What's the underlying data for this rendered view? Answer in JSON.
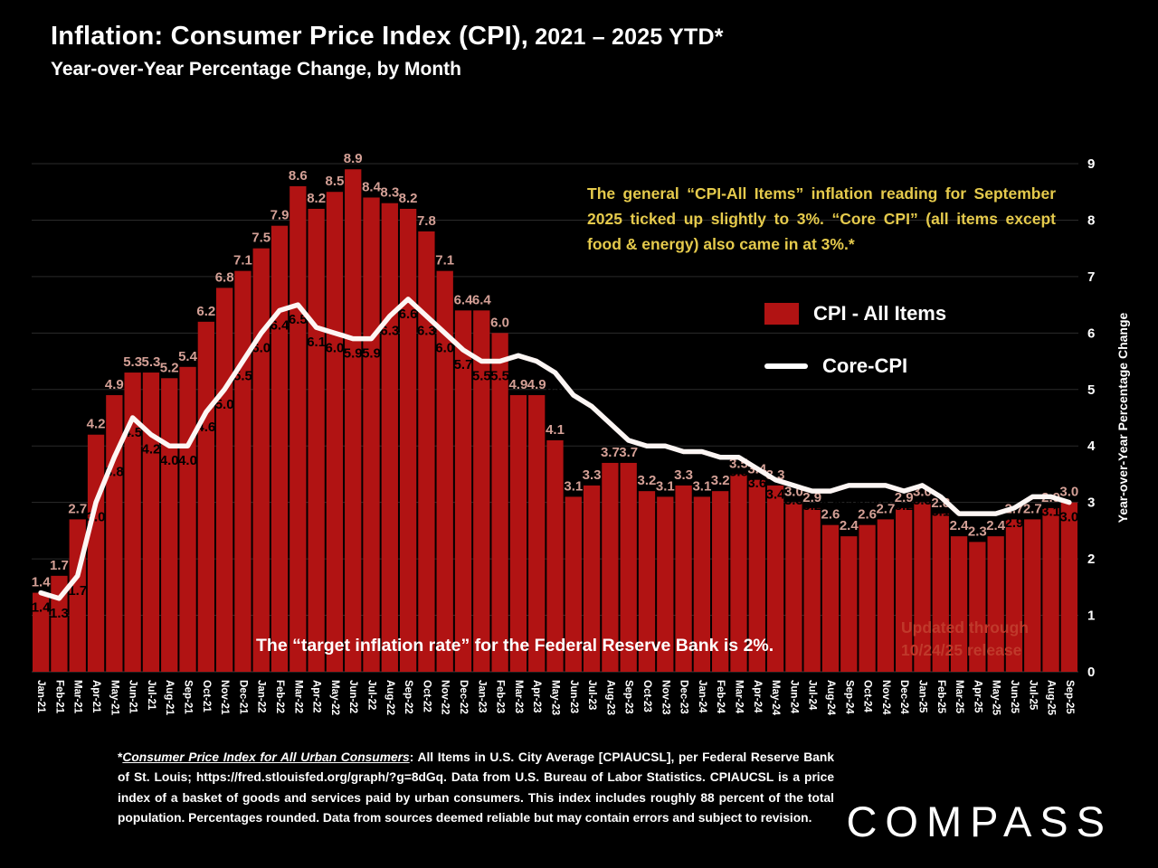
{
  "header": {
    "title_main": "Inflation: Consumer Price Index (CPI),",
    "title_suffix": " 2021 – 2025 YTD*",
    "subtitle": "Year-over-Year Percentage Change, by Month"
  },
  "annotation": {
    "text": "The general “CPI-All Items” inflation reading for September 2025 ticked up slightly to 3%. “Core CPI” (all items except food & energy) also came in at 3%.*"
  },
  "legend": {
    "items": [
      {
        "label": "CPI - All Items",
        "type": "bar",
        "color": "#B11313"
      },
      {
        "label": "Core-CPI",
        "type": "line",
        "color": "#FFFFFF"
      }
    ]
  },
  "notes": {
    "target": "The “target inflation rate” for the Federal Reserve Bank is 2%.",
    "updated_line1": "Updated through",
    "updated_line2": "10/24/25 release"
  },
  "footnote": {
    "prefix": "*",
    "underlined": "Consumer Price Index for All Urban Consumers",
    "rest": ": All Items in U.S. City Average [CPIAUCSL], per Federal Reserve Bank of St. Louis; https://fred.stlouisfed.org/graph/?g=8dGq. Data from U.S. Bureau of Labor Statistics. CPIAUCSL is a price index of a basket of goods and services paid by urban consumers. This index includes roughly 88 percent of the total population. Percentages rounded. Data from sources deemed reliable but may contain errors and subject to revision."
  },
  "brand": {
    "name": "COMPASS"
  },
  "chart_data": {
    "type": "bar",
    "title": "Inflation: Consumer Price Index (CPI), 2021 – 2025 YTD",
    "xlabel": "",
    "ylabel": "Year-over-Year Percentage Change",
    "ylim": [
      0,
      9
    ],
    "yticks": [
      0,
      1,
      2,
      3,
      4,
      5,
      6,
      7,
      8,
      9
    ],
    "grid": true,
    "legend_position": "right-middle",
    "categories": [
      "Jan-21",
      "Feb-21",
      "Mar-21",
      "Apr-21",
      "May-21",
      "Jun-21",
      "Jul-21",
      "Aug-21",
      "Sep-21",
      "Oct-21",
      "Nov-21",
      "Dec-21",
      "Jan-22",
      "Feb-22",
      "Mar-22",
      "Apr-22",
      "May-22",
      "Jun-22",
      "Jul-22",
      "Aug-22",
      "Sep-22",
      "Oct-22",
      "Nov-22",
      "Dec-22",
      "Jan-23",
      "Feb-23",
      "Mar-23",
      "Apr-23",
      "May-23",
      "Jun-23",
      "Jul-23",
      "Aug-23",
      "Sep-23",
      "Oct-23",
      "Nov-23",
      "Dec-23",
      "Jan-24",
      "Feb-24",
      "Mar-24",
      "Apr-24",
      "May-24",
      "Jun-24",
      "Jul-24",
      "Aug-24",
      "Sep-24",
      "Oct-24",
      "Nov-24",
      "Dec-24",
      "Jan-25",
      "Feb-25",
      "Mar-25",
      "Apr-25",
      "May-25",
      "Jun-25",
      "Jul-25",
      "Aug-25",
      "Sep-25"
    ],
    "series": [
      {
        "name": "CPI - All Items",
        "type": "bar",
        "color": "#B11313",
        "values": [
          1.4,
          1.7,
          2.7,
          4.2,
          4.9,
          5.3,
          5.3,
          5.2,
          5.4,
          6.2,
          6.8,
          7.1,
          7.5,
          7.9,
          8.6,
          8.2,
          8.5,
          8.9,
          8.4,
          8.3,
          8.2,
          7.8,
          7.1,
          6.4,
          6.4,
          6.0,
          4.9,
          4.9,
          4.1,
          3.1,
          3.3,
          3.7,
          3.7,
          3.2,
          3.1,
          3.3,
          3.1,
          3.2,
          3.5,
          3.4,
          3.3,
          3.0,
          2.9,
          2.6,
          2.4,
          2.6,
          2.7,
          2.9,
          3.0,
          2.8,
          2.4,
          2.3,
          2.4,
          2.7,
          2.7,
          2.9,
          3.0
        ]
      },
      {
        "name": "Core-CPI",
        "type": "line",
        "color": "#FDF6F4",
        "values": [
          1.4,
          1.3,
          1.7,
          3.0,
          3.8,
          4.5,
          4.2,
          4.0,
          4.0,
          4.6,
          5.0,
          5.5,
          6.0,
          6.4,
          6.5,
          6.1,
          6.0,
          5.9,
          5.9,
          6.3,
          6.6,
          6.3,
          6.0,
          5.7,
          5.5,
          5.5,
          5.6,
          5.5,
          5.3,
          4.9,
          4.7,
          4.4,
          4.1,
          4.0,
          4.0,
          3.9,
          3.9,
          3.8,
          3.8,
          3.6,
          3.4,
          3.3,
          3.2,
          3.2,
          3.3,
          3.3,
          3.3,
          3.2,
          3.3,
          3.1,
          2.8,
          2.8,
          2.8,
          2.9,
          3.1,
          3.1,
          3.0
        ]
      }
    ]
  }
}
